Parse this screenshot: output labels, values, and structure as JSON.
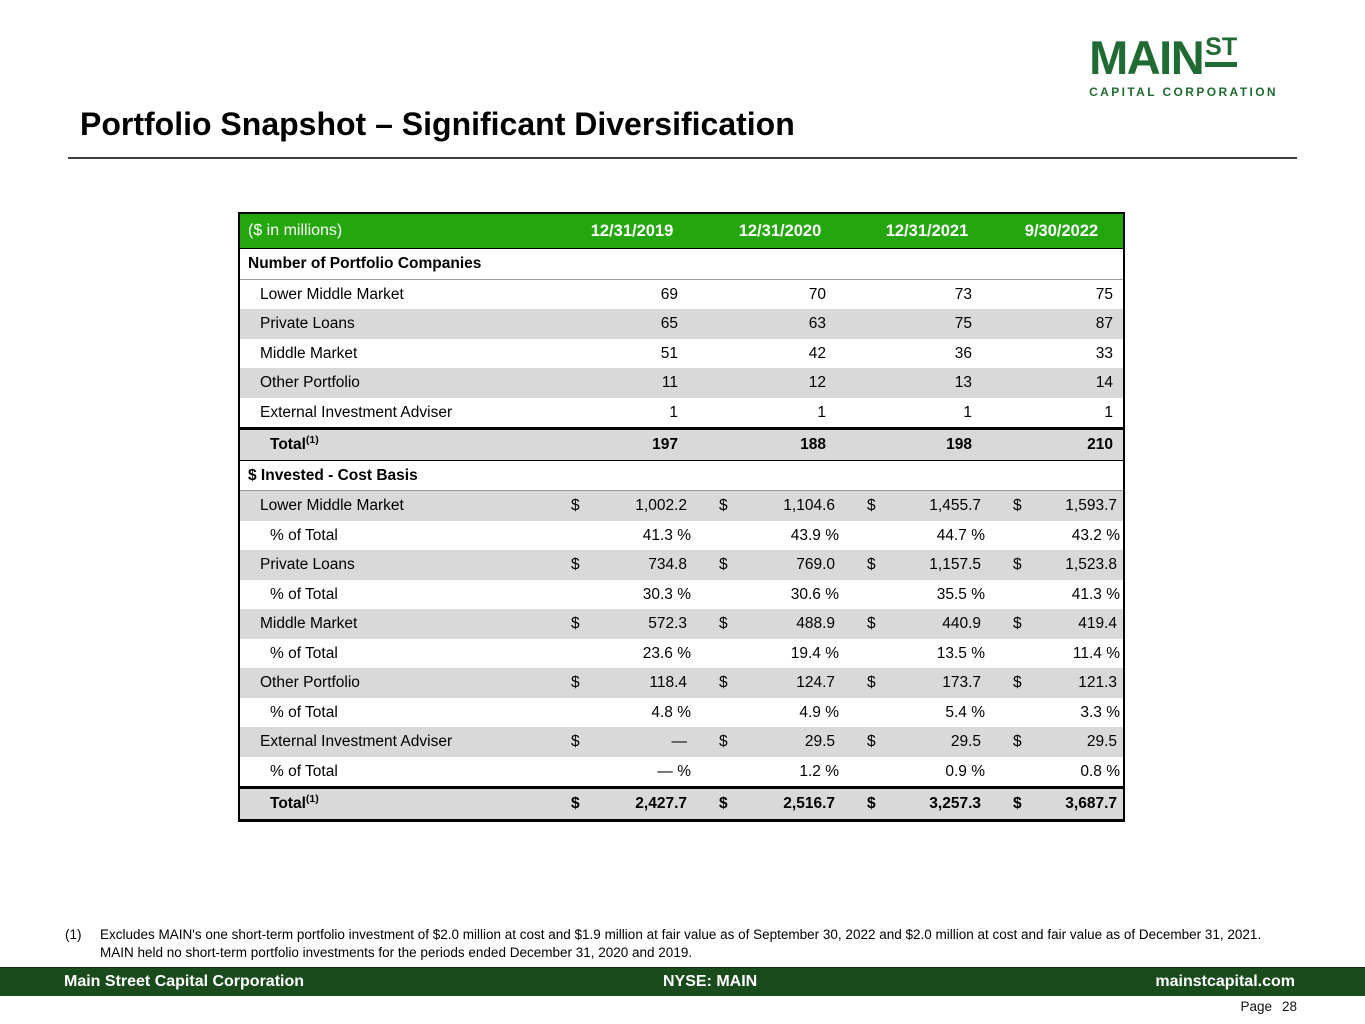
{
  "slide": {
    "title": "Portfolio Snapshot – Significant Diversification"
  },
  "logo": {
    "main": "MAIN",
    "st": "ST",
    "tagline": "CAPITAL CORPORATION"
  },
  "colors": {
    "table_header_green": "#24a70c",
    "logo_green": "#1f6b33",
    "footer_green": "#1a4b1d",
    "row_shade_gray": "#d9d9d9"
  },
  "table": {
    "units_label": "($ in millions)",
    "dollar_sign": "$",
    "columns": [
      "12/31/2019",
      "12/31/2020",
      "12/31/2021",
      "9/30/2022"
    ],
    "sections": [
      {
        "title": "Number of Portfolio Companies",
        "rows": [
          {
            "label": "Lower Middle Market",
            "type": "count",
            "shaded": false,
            "values": [
              "69",
              "70",
              "73",
              "75"
            ]
          },
          {
            "label": "Private Loans",
            "type": "count",
            "shaded": true,
            "values": [
              "65",
              "63",
              "75",
              "87"
            ]
          },
          {
            "label": "Middle Market",
            "type": "count",
            "shaded": false,
            "values": [
              "51",
              "42",
              "36",
              "33"
            ]
          },
          {
            "label": "Other Portfolio",
            "type": "count",
            "shaded": true,
            "values": [
              "11",
              "12",
              "13",
              "14"
            ]
          },
          {
            "label": "External Investment Adviser",
            "type": "count",
            "shaded": false,
            "values": [
              "1",
              "1",
              "1",
              "1"
            ]
          }
        ],
        "total": {
          "label": "Total",
          "sup": "(1)",
          "type": "count",
          "values": [
            "197",
            "188",
            "198",
            "210"
          ]
        }
      },
      {
        "title": "$ Invested - Cost Basis",
        "rows": [
          {
            "label": "Lower Middle Market",
            "type": "money",
            "shaded": true,
            "values": [
              "1,002.2",
              "1,104.6",
              "1,455.7",
              "1,593.7"
            ]
          },
          {
            "label": "% of Total",
            "type": "percent",
            "shaded": false,
            "values": [
              "41.3 %",
              "43.9 %",
              "44.7 %",
              "43.2 %"
            ]
          },
          {
            "label": "Private Loans",
            "type": "money",
            "shaded": true,
            "values": [
              "734.8",
              "769.0",
              "1,157.5",
              "1,523.8"
            ]
          },
          {
            "label": "% of Total",
            "type": "percent",
            "shaded": false,
            "values": [
              "30.3 %",
              "30.6 %",
              "35.5 %",
              "41.3 %"
            ]
          },
          {
            "label": "Middle Market",
            "type": "money",
            "shaded": true,
            "values": [
              "572.3",
              "488.9",
              "440.9",
              "419.4"
            ]
          },
          {
            "label": "% of Total",
            "type": "percent",
            "shaded": false,
            "values": [
              "23.6 %",
              "19.4 %",
              "13.5 %",
              "11.4 %"
            ]
          },
          {
            "label": "Other Portfolio",
            "type": "money",
            "shaded": true,
            "values": [
              "118.4",
              "124.7",
              "173.7",
              "121.3"
            ]
          },
          {
            "label": "% of Total",
            "type": "percent",
            "shaded": false,
            "values": [
              "4.8 %",
              "4.9 %",
              "5.4 %",
              "3.3 %"
            ]
          },
          {
            "label": "External Investment Adviser",
            "type": "money",
            "shaded": true,
            "values": [
              "—",
              "29.5",
              "29.5",
              "29.5"
            ]
          },
          {
            "label": "% of Total",
            "type": "percent",
            "shaded": false,
            "values": [
              "— %",
              "1.2 %",
              "0.9 %",
              "0.8 %"
            ]
          }
        ],
        "total": {
          "label": "Total",
          "sup": "(1)",
          "type": "money",
          "values": [
            "2,427.7",
            "2,516.7",
            "3,257.3",
            "3,687.7"
          ]
        }
      }
    ]
  },
  "footnote": {
    "marker": "(1)",
    "text": "Excludes MAIN's one short-term portfolio investment of $2.0 million at cost and $1.9 million at fair value as of September 30, 2022 and $2.0 million at cost and fair value as of December 31, 2021. MAIN held no short-term portfolio investments for the periods ended December 31, 2020 and 2019."
  },
  "footer": {
    "left": "Main Street Capital Corporation",
    "center": "NYSE: MAIN",
    "right": "mainstcapital.com"
  },
  "page": {
    "label": "Page",
    "number": "28"
  }
}
